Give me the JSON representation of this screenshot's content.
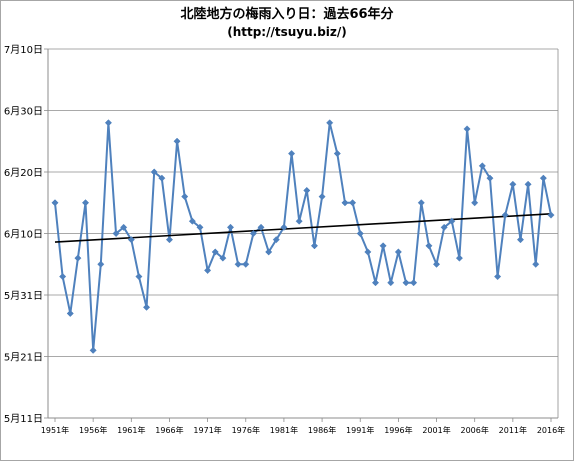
{
  "chart_data": {
    "type": "line",
    "title": "北陸地方の梅雨入り日：過去66年分",
    "subtitle": "(http://tsuyu.biz/)",
    "y_tick_labels": [
      "7月10日",
      "6月30日",
      "6月20日",
      "6月10日",
      "5月31日",
      "5月21日",
      "5月11日"
    ],
    "y_tick_values": [
      70,
      60,
      50,
      40,
      30,
      20,
      10
    ],
    "ylim": [
      10,
      70
    ],
    "x_tick_labels": [
      "1951年",
      "1956年",
      "1961年",
      "1966年",
      "1971年",
      "1976年",
      "1981年",
      "1986年",
      "1991年",
      "1996年",
      "2001年",
      "2006年",
      "2011年",
      "2016年"
    ],
    "x_tick_years": [
      1951,
      1956,
      1961,
      1966,
      1971,
      1976,
      1981,
      1986,
      1991,
      1996,
      2001,
      2006,
      2011,
      2016
    ],
    "grid": true,
    "legend": "none",
    "series": [
      {
        "x": [
          1951,
          1952,
          1953,
          1954,
          1955,
          1956,
          1957,
          1958,
          1959,
          1960,
          1961,
          1962,
          1963,
          1964,
          1965,
          1966,
          1967,
          1968,
          1969,
          1970,
          1971,
          1972,
          1973,
          1974,
          1975,
          1976,
          1977,
          1978,
          1979,
          1980,
          1981,
          1982,
          1983,
          1984,
          1985,
          1986,
          1987,
          1988,
          1989,
          1990,
          1991,
          1992,
          1993,
          1994,
          1995,
          1996,
          1997,
          1998,
          1999,
          2000,
          2001,
          2002,
          2003,
          2004,
          2005,
          2006,
          2007,
          2008,
          2009,
          2010,
          2011,
          2012,
          2013,
          2014,
          2015,
          2016
        ],
        "values": [
          45,
          33,
          27,
          36,
          45,
          21,
          35,
          58,
          40,
          41,
          39,
          33,
          28,
          50,
          49,
          39,
          55,
          46,
          42,
          41,
          34,
          37,
          36,
          41,
          35,
          35,
          40,
          41,
          37,
          39,
          41,
          53,
          42,
          47,
          38,
          46,
          58,
          53,
          45,
          45,
          40,
          37,
          32,
          38,
          32,
          37,
          32,
          32,
          45,
          38,
          35,
          41,
          42,
          36,
          57,
          45,
          51,
          49,
          33,
          43,
          48,
          39,
          48,
          35,
          49,
          43
        ],
        "color": "#4f81bd"
      }
    ],
    "trendline": {
      "y_start": 38.6,
      "y_end": 43.2,
      "color": "#000000"
    }
  }
}
